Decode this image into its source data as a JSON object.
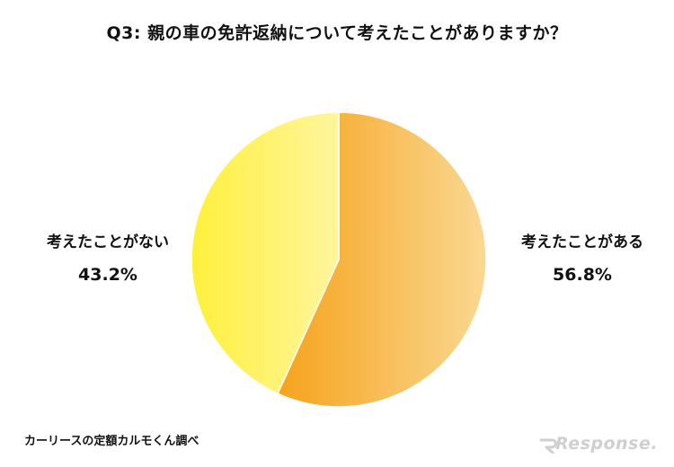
{
  "chart_data": {
    "type": "pie",
    "title": "Q3: 親の車の免許返納について考えたことがありますか？",
    "slices": [
      {
        "label": "考えたことがある",
        "value": 56.8,
        "display": "56.8%",
        "color_from": "#f5a31c",
        "color_to": "#fad892"
      },
      {
        "label": "考えたことがない",
        "value": 43.2,
        "display": "43.2%",
        "color_from": "#fff03c",
        "color_to": "#fff59e"
      }
    ],
    "start": "12 o'clock",
    "direction": "clockwise"
  },
  "footer": {
    "source": "カーリースの定額カルモくん調べ",
    "logo": "Response."
  }
}
